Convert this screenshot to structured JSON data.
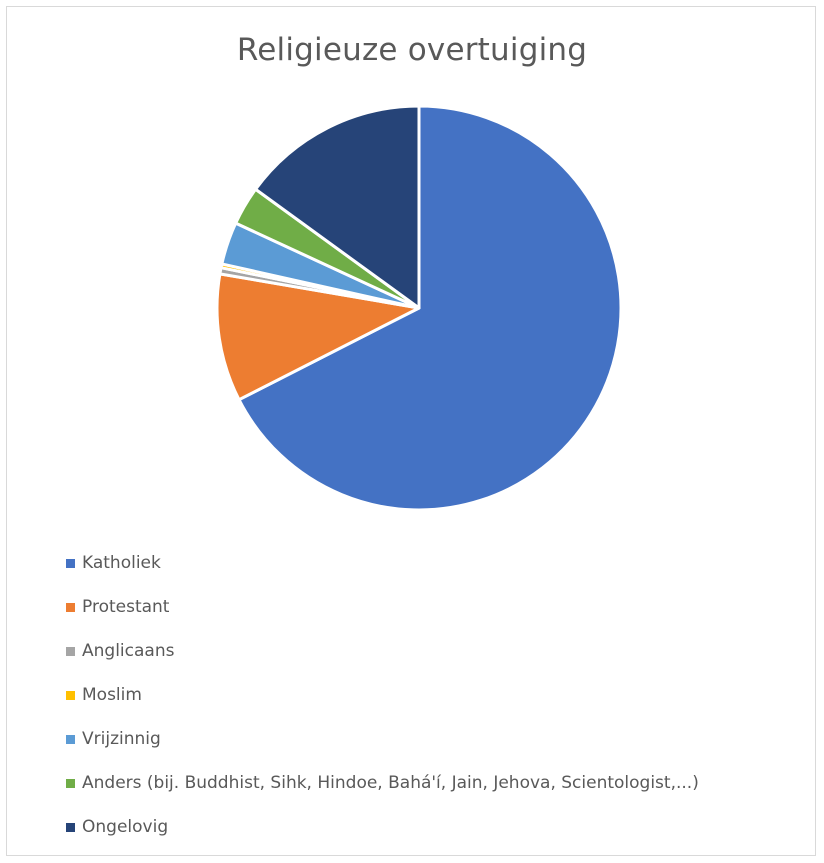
{
  "chart_data": {
    "type": "pie",
    "title": "Religieuze overtuiging",
    "legend_position": "bottom",
    "slices": [
      {
        "label": "Katholiek",
        "value": 67.5,
        "color": "#4472C4"
      },
      {
        "label": "Protestant",
        "value": 10.2,
        "color": "#ED7D31"
      },
      {
        "label": "Anglicaans",
        "value": 0.5,
        "color": "#A5A5A5"
      },
      {
        "label": "Moslim",
        "value": 0.3,
        "color": "#FFC000"
      },
      {
        "label": "Vrijzinnig",
        "value": 3.4,
        "color": "#5B9BD5"
      },
      {
        "label": "Anders (bij. Buddhist, Sihk, Hindoe, Bahá'í, Jain, Jehova, Scientologist,...)",
        "value": 3.1,
        "color": "#70AD47"
      },
      {
        "label": "Ongelovig",
        "value": 15.0,
        "color": "#264478"
      }
    ]
  }
}
